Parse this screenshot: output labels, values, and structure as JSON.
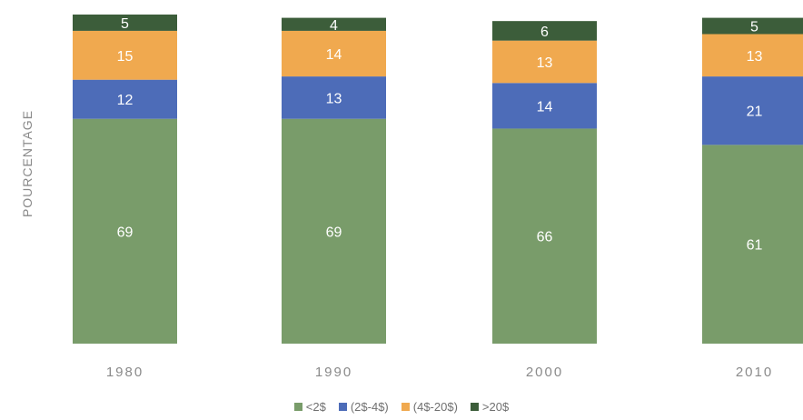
{
  "chart_data": {
    "type": "bar",
    "stacked": true,
    "title": "",
    "xlabel": "",
    "ylabel": "POURCENTAGE",
    "categories": [
      "1980",
      "1990",
      "2000",
      "2010"
    ],
    "series": [
      {
        "name": "<2$",
        "color": "#799c6a",
        "values": [
          69,
          69,
          66,
          61
        ]
      },
      {
        "name": "(2$-4$)",
        "color": "#4d6cb8",
        "values": [
          12,
          13,
          14,
          21
        ]
      },
      {
        "name": "(4$-20$)",
        "color": "#f0a94f",
        "values": [
          15,
          14,
          13,
          13
        ]
      },
      {
        "name": ">20$",
        "color": "#3c5d3a",
        "values": [
          5,
          4,
          6,
          5
        ]
      }
    ],
    "ylim": [
      0,
      101
    ],
    "grid": false,
    "legend_position": "bottom"
  }
}
